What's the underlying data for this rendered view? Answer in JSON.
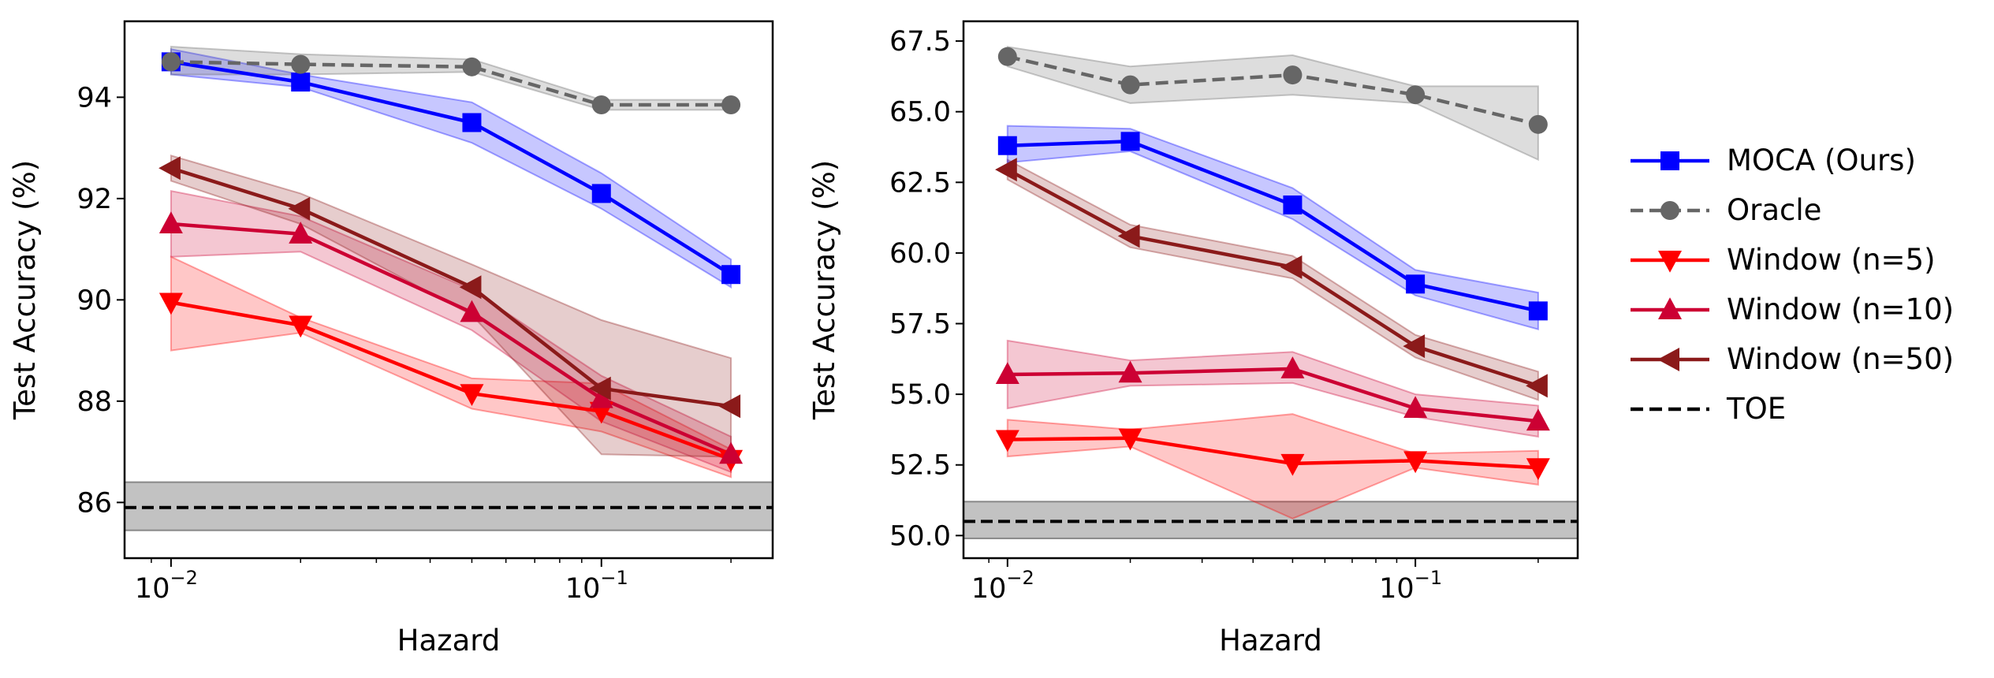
{
  "chart_data": [
    {
      "type": "line",
      "xscale": "log",
      "title": "",
      "xlabel": "Hazard",
      "ylabel": "Test Accuracy (%)",
      "xlim": [
        0.0078,
        0.25
      ],
      "ylim": [
        84.9,
        95.5
      ],
      "yticks": [
        86,
        88,
        90,
        92,
        94
      ],
      "ytick_labels": [
        "86",
        "88",
        "90",
        "92",
        "94"
      ],
      "xtick_labels": [
        {
          "base": "10",
          "exp": "−2"
        },
        {
          "base": "10",
          "exp": "−1"
        }
      ],
      "x": [
        0.01,
        0.02,
        0.05,
        0.1,
        0.2
      ],
      "series": [
        {
          "name": "Window (n=5)",
          "color": "#ff0000",
          "marker": "triangle-down",
          "dash": "solid",
          "values": [
            89.95,
            89.5,
            88.15,
            87.8,
            86.85
          ],
          "lower": [
            89.0,
            89.35,
            87.85,
            87.4,
            86.5
          ],
          "upper": [
            90.85,
            89.65,
            88.45,
            88.35,
            87.05
          ]
        },
        {
          "name": "Window (n=10)",
          "color": "#cc0033",
          "marker": "triangle-up",
          "dash": "solid",
          "values": [
            91.5,
            91.3,
            89.75,
            88.05,
            86.95
          ],
          "lower": [
            90.85,
            90.95,
            89.4,
            87.6,
            86.6
          ],
          "upper": [
            92.15,
            91.65,
            90.2,
            88.5,
            87.3
          ]
        },
        {
          "name": "Window (n=50)",
          "color": "#8b1a1a",
          "marker": "triangle-left",
          "dash": "solid",
          "values": [
            92.6,
            91.8,
            90.25,
            88.25,
            87.9
          ],
          "lower": [
            92.35,
            91.5,
            89.7,
            86.95,
            86.9
          ],
          "upper": [
            92.85,
            92.1,
            90.7,
            89.6,
            88.85
          ]
        },
        {
          "name": "MOCA (Ours)",
          "color": "#0000ff",
          "marker": "square",
          "dash": "solid",
          "values": [
            94.7,
            94.3,
            93.5,
            92.1,
            90.5
          ],
          "lower": [
            94.45,
            94.2,
            93.1,
            91.8,
            90.25
          ],
          "upper": [
            94.95,
            94.45,
            93.9,
            92.5,
            90.8
          ]
        },
        {
          "name": "Oracle",
          "color": "#666666",
          "marker": "circle",
          "dash": "dashed",
          "values": [
            94.7,
            94.65,
            94.6,
            93.85,
            93.85
          ],
          "lower": [
            94.45,
            94.45,
            94.5,
            93.75,
            93.75
          ],
          "upper": [
            95.0,
            94.85,
            94.75,
            93.95,
            93.95
          ]
        }
      ],
      "baseline": {
        "name": "TOE",
        "value": 85.9,
        "lower": 85.45,
        "upper": 86.4,
        "color": "#000000",
        "band_color": "#999999"
      }
    },
    {
      "type": "line",
      "xscale": "log",
      "title": "",
      "xlabel": "Hazard",
      "ylabel": "Test Accuracy (%)",
      "xlim": [
        0.0078,
        0.25
      ],
      "ylim": [
        49.2,
        68.2
      ],
      "yticks": [
        50.0,
        52.5,
        55.0,
        57.5,
        60.0,
        62.5,
        65.0,
        67.5
      ],
      "ytick_labels": [
        "50.0",
        "52.5",
        "55.0",
        "57.5",
        "60.0",
        "62.5",
        "65.0",
        "67.5"
      ],
      "xtick_labels": [
        {
          "base": "10",
          "exp": "−2"
        },
        {
          "base": "10",
          "exp": "−1"
        }
      ],
      "x": [
        0.01,
        0.02,
        0.05,
        0.1,
        0.2
      ],
      "series": [
        {
          "name": "Window (n=5)",
          "color": "#ff0000",
          "marker": "triangle-down",
          "dash": "solid",
          "values": [
            53.4,
            53.45,
            52.55,
            52.65,
            52.4
          ],
          "lower": [
            52.8,
            53.15,
            50.6,
            52.4,
            51.8
          ],
          "upper": [
            54.1,
            53.75,
            54.3,
            52.9,
            53.0
          ]
        },
        {
          "name": "Window (n=10)",
          "color": "#cc0033",
          "marker": "triangle-up",
          "dash": "solid",
          "values": [
            55.7,
            55.75,
            55.9,
            54.5,
            54.05
          ],
          "lower": [
            54.5,
            55.3,
            55.4,
            54.2,
            53.5
          ],
          "upper": [
            56.9,
            56.2,
            56.5,
            55.0,
            54.6
          ]
        },
        {
          "name": "Window (n=50)",
          "color": "#8b1a1a",
          "marker": "triangle-left",
          "dash": "solid",
          "values": [
            62.95,
            60.6,
            59.5,
            56.7,
            55.3
          ],
          "lower": [
            62.6,
            60.2,
            59.1,
            56.3,
            54.8
          ],
          "upper": [
            63.3,
            61.0,
            59.9,
            57.1,
            55.8
          ]
        },
        {
          "name": "MOCA (Ours)",
          "color": "#0000ff",
          "marker": "square",
          "dash": "solid",
          "values": [
            63.8,
            63.95,
            61.7,
            58.9,
            57.95
          ],
          "lower": [
            63.2,
            63.6,
            61.2,
            58.5,
            57.3
          ],
          "upper": [
            64.5,
            64.4,
            62.3,
            59.4,
            58.6
          ]
        },
        {
          "name": "Oracle",
          "color": "#666666",
          "marker": "circle",
          "dash": "dashed",
          "values": [
            66.95,
            65.95,
            66.3,
            65.6,
            64.55
          ],
          "lower": [
            66.6,
            65.3,
            65.6,
            65.3,
            63.3
          ],
          "upper": [
            67.3,
            66.6,
            67.0,
            65.9,
            65.9
          ]
        }
      ],
      "baseline": {
        "name": "TOE",
        "value": 50.5,
        "lower": 49.9,
        "upper": 51.2,
        "color": "#000000",
        "band_color": "#999999"
      }
    }
  ],
  "legend": {
    "placement": "right",
    "items": [
      {
        "label": "MOCA (Ours)",
        "color": "#0000ff",
        "marker": "square",
        "dash": "solid"
      },
      {
        "label": "Oracle",
        "color": "#666666",
        "marker": "circle",
        "dash": "dashed"
      },
      {
        "label": "Window (n=5)",
        "color": "#ff0000",
        "marker": "triangle-down",
        "dash": "solid"
      },
      {
        "label": "Window (n=10)",
        "color": "#cc0033",
        "marker": "triangle-up",
        "dash": "solid"
      },
      {
        "label": "Window (n=50)",
        "color": "#8b1a1a",
        "marker": "triangle-left",
        "dash": "solid"
      },
      {
        "label": "TOE",
        "color": "#000000",
        "marker": "none",
        "dash": "dashed"
      }
    ]
  }
}
